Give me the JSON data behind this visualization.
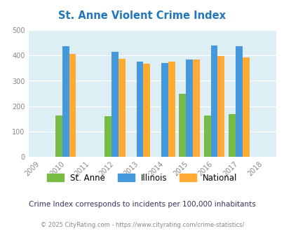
{
  "title": "St. Anne Violent Crime Index",
  "years": [
    2009,
    2010,
    2011,
    2012,
    2013,
    2014,
    2015,
    2016,
    2017,
    2018
  ],
  "data_years": [
    2010,
    2012,
    2013,
    2014,
    2015,
    2016,
    2017
  ],
  "st_anne": [
    163,
    160,
    null,
    null,
    248,
    165,
    170
  ],
  "illinois": [
    435,
    415,
    375,
    370,
    385,
    438,
    437
  ],
  "national": [
    405,
    388,
    368,
    375,
    383,
    397,
    392
  ],
  "color_st_anne": "#77bb44",
  "color_illinois": "#4499dd",
  "color_national": "#ffaa33",
  "ylim": [
    0,
    500
  ],
  "yticks": [
    0,
    100,
    200,
    300,
    400,
    500
  ],
  "background_color": "#ddeef4",
  "subtitle": "Crime Index corresponds to incidents per 100,000 inhabitants",
  "footer": "© 2025 CityRating.com - https://www.cityrating.com/crime-statistics/",
  "bar_width": 0.28
}
